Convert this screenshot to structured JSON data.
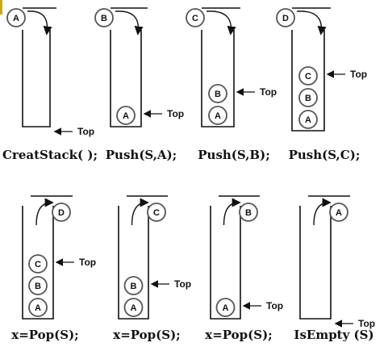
{
  "labels": {
    "top": "Top"
  },
  "frames": [
    {
      "caption": "CreatStack( );",
      "stack": [],
      "incoming": "A",
      "incoming_state": "entering",
      "top_at": "bottom"
    },
    {
      "caption": "Push(S,A);",
      "stack": [
        "A"
      ],
      "incoming": "B",
      "incoming_state": "entering",
      "top_at": "element"
    },
    {
      "caption": "Push(S,B);",
      "stack": [
        "A",
        "B"
      ],
      "incoming": "C",
      "incoming_state": "entering",
      "top_at": "element"
    },
    {
      "caption": "Push(S,C);",
      "stack": [
        "A",
        "B",
        "C"
      ],
      "incoming": "D",
      "incoming_state": "entering",
      "top_at": "element"
    },
    {
      "caption": "x=Pop(S);",
      "stack": [
        "A",
        "B",
        "C"
      ],
      "incoming": "D",
      "incoming_state": "leaving",
      "top_at": "element"
    },
    {
      "caption": "x=Pop(S);",
      "stack": [
        "A",
        "B"
      ],
      "incoming": "C",
      "incoming_state": "leaving",
      "top_at": "element"
    },
    {
      "caption": "x=Pop(S);",
      "stack": [
        "A"
      ],
      "incoming": "B",
      "incoming_state": "leaving",
      "top_at": "element"
    },
    {
      "caption": "IsEmpty (S)",
      "stack": [],
      "incoming": "A",
      "incoming_state": "leaving",
      "top_at": "bottom"
    }
  ],
  "colors": {
    "line": "#111111",
    "node_stroke": "#555555",
    "accent_bar": "#d9a400"
  }
}
